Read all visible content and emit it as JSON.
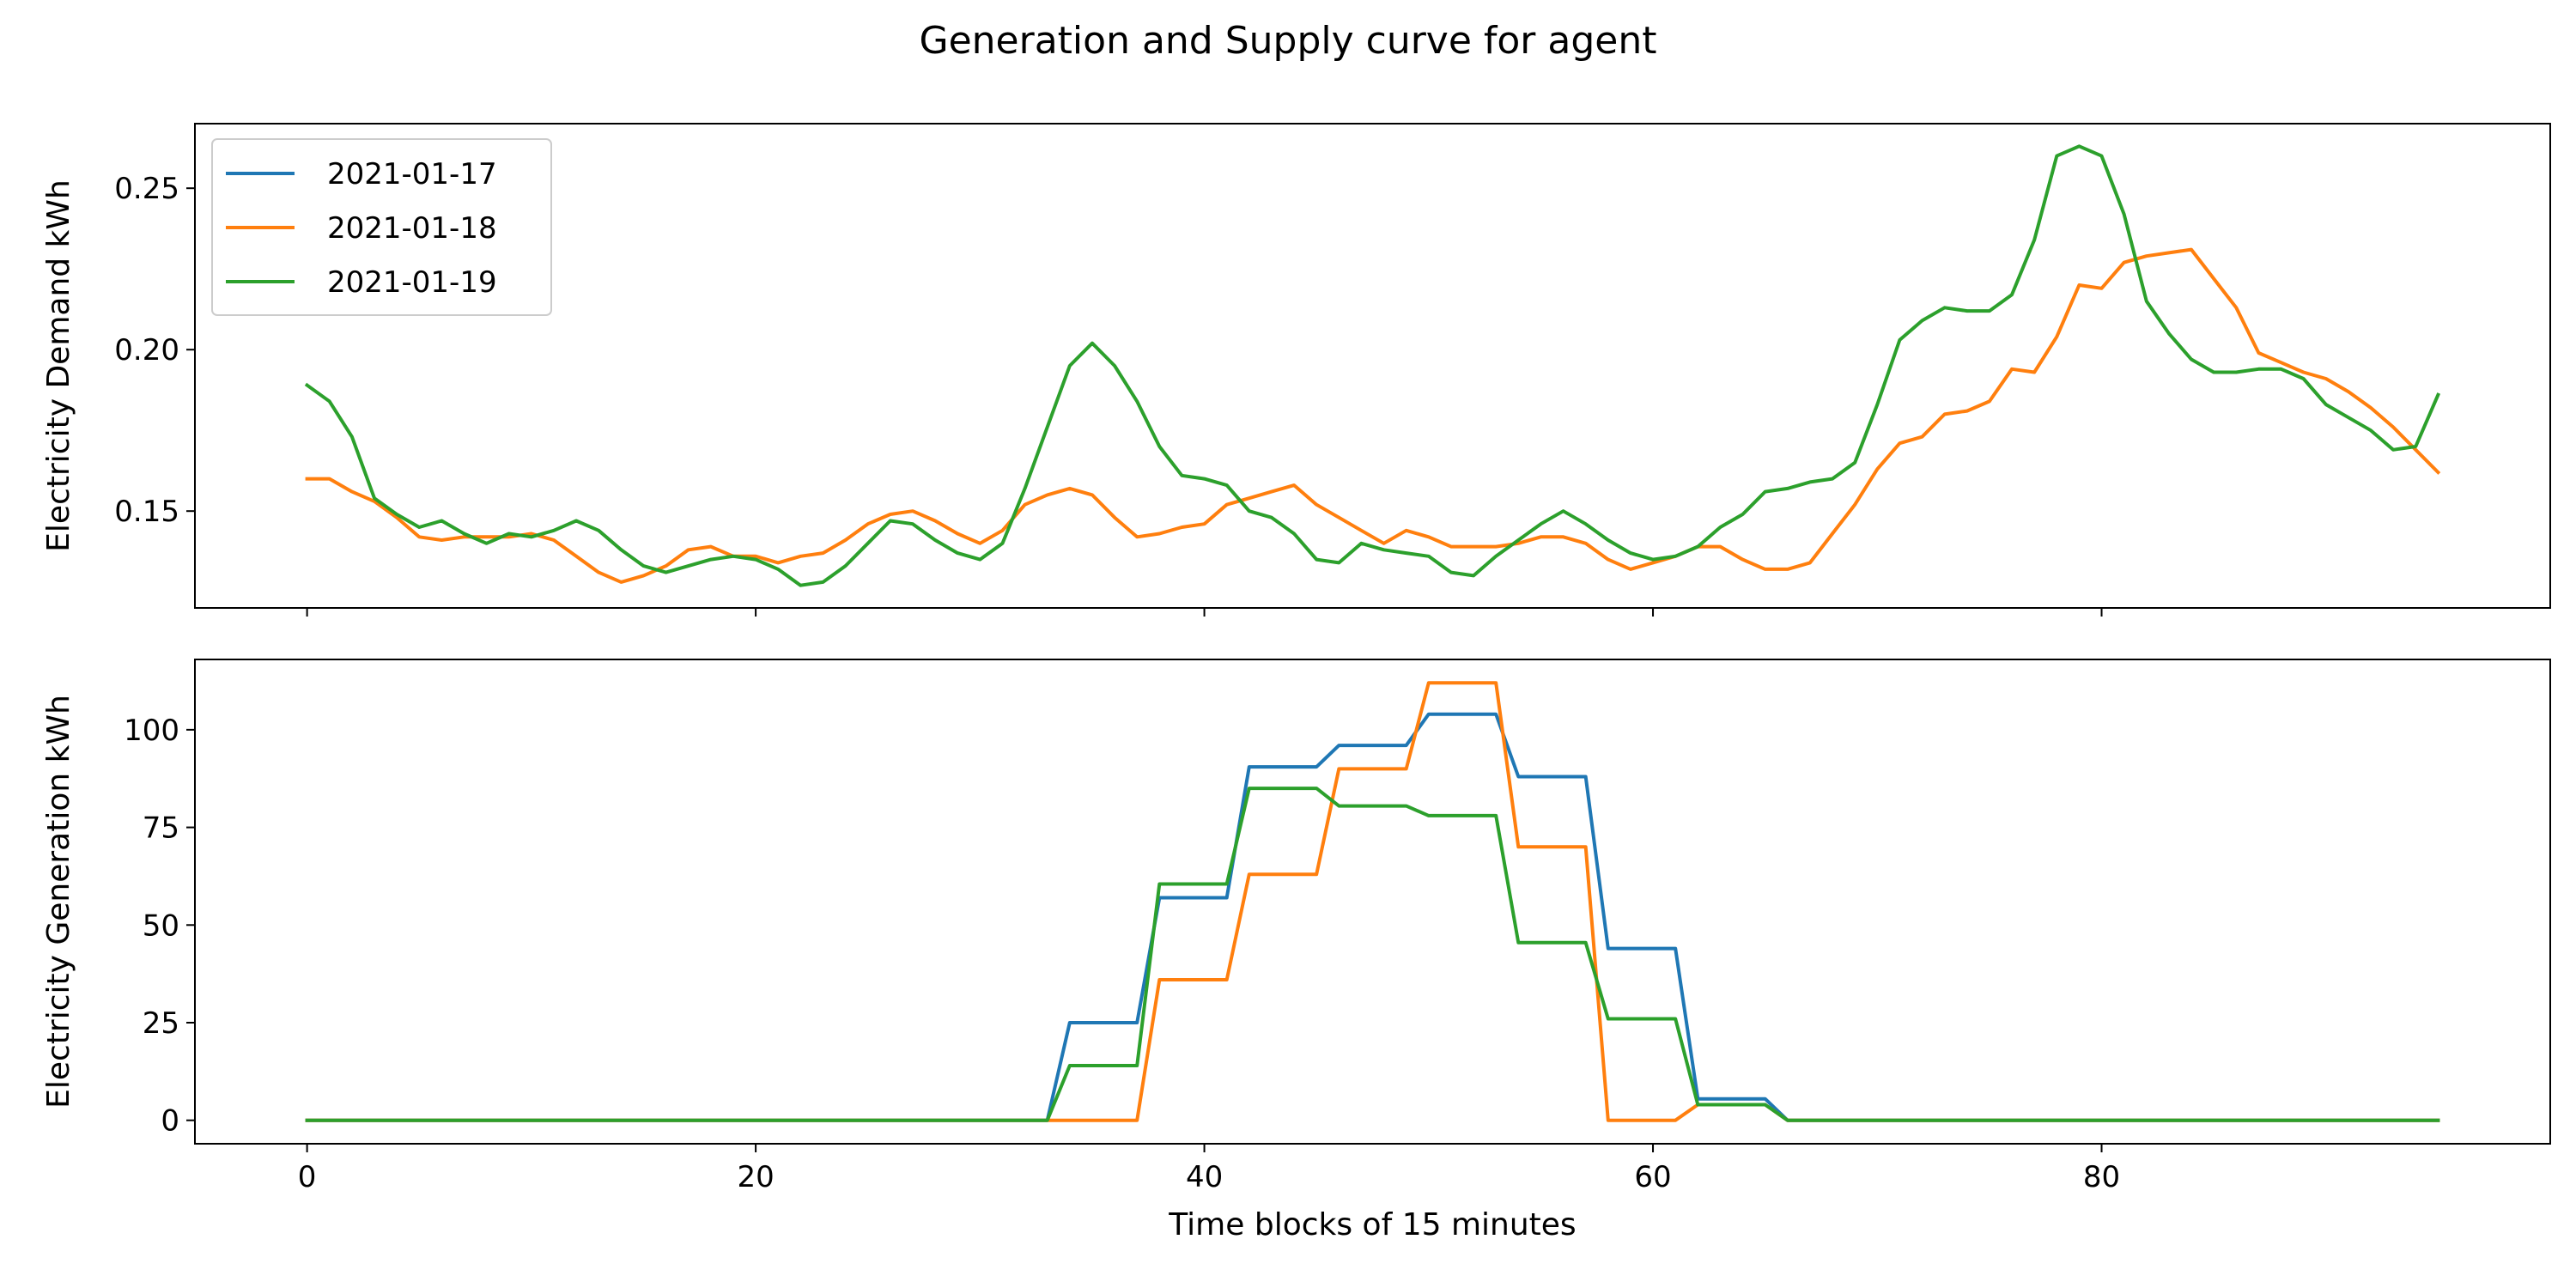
{
  "figure": {
    "title": "Generation and Supply curve for agent",
    "xlabel": "Time blocks of 15 minutes"
  },
  "chart_data": [
    {
      "type": "line",
      "ylabel": "Electricity Demand kWh",
      "xlim": [
        -5,
        100
      ],
      "ylim": [
        0.12,
        0.27
      ],
      "xticks": [
        0,
        20,
        40,
        60,
        80
      ],
      "yticks": [
        0.15,
        0.2,
        0.25
      ],
      "ytick_labels": [
        "0.15",
        "0.20",
        "0.25"
      ],
      "show_xtick_labels": false,
      "grid": false,
      "legend": "upper-left",
      "series": [
        {
          "name": "2021-01-17",
          "color": "#1f77b4",
          "values": []
        },
        {
          "name": "2021-01-18",
          "color": "#ff7f0e",
          "values": [
            0.16,
            0.16,
            0.156,
            0.153,
            0.148,
            0.142,
            0.141,
            0.142,
            0.142,
            0.142,
            0.143,
            0.141,
            0.136,
            0.131,
            0.128,
            0.13,
            0.133,
            0.138,
            0.139,
            0.136,
            0.136,
            0.134,
            0.136,
            0.137,
            0.141,
            0.146,
            0.149,
            0.15,
            0.147,
            0.143,
            0.14,
            0.144,
            0.152,
            0.155,
            0.157,
            0.155,
            0.148,
            0.142,
            0.143,
            0.145,
            0.146,
            0.152,
            0.154,
            0.156,
            0.158,
            0.152,
            0.148,
            0.144,
            0.14,
            0.144,
            0.142,
            0.139,
            0.139,
            0.139,
            0.14,
            0.142,
            0.142,
            0.14,
            0.135,
            0.132,
            0.134,
            0.136,
            0.139,
            0.139,
            0.135,
            0.132,
            0.132,
            0.134,
            0.143,
            0.152,
            0.163,
            0.171,
            0.173,
            0.18,
            0.181,
            0.184,
            0.194,
            0.193,
            0.204,
            0.22,
            0.219,
            0.227,
            0.229,
            0.23,
            0.231,
            0.222,
            0.213,
            0.199,
            0.196,
            0.193,
            0.191,
            0.187,
            0.182,
            0.176,
            0.169,
            0.162
          ]
        },
        {
          "name": "2021-01-19",
          "color": "#2ca02c",
          "values": [
            0.189,
            0.184,
            0.173,
            0.154,
            0.149,
            0.145,
            0.147,
            0.143,
            0.14,
            0.143,
            0.142,
            0.144,
            0.147,
            0.144,
            0.138,
            0.133,
            0.131,
            0.133,
            0.135,
            0.136,
            0.135,
            0.132,
            0.127,
            0.128,
            0.133,
            0.14,
            0.147,
            0.146,
            0.141,
            0.137,
            0.135,
            0.14,
            0.157,
            0.176,
            0.195,
            0.202,
            0.195,
            0.184,
            0.17,
            0.161,
            0.16,
            0.158,
            0.15,
            0.148,
            0.143,
            0.135,
            0.134,
            0.14,
            0.138,
            0.137,
            0.136,
            0.131,
            0.13,
            0.136,
            0.141,
            0.146,
            0.15,
            0.146,
            0.141,
            0.137,
            0.135,
            0.136,
            0.139,
            0.145,
            0.149,
            0.156,
            0.157,
            0.159,
            0.16,
            0.165,
            0.183,
            0.203,
            0.209,
            0.213,
            0.212,
            0.212,
            0.217,
            0.234,
            0.26,
            0.263,
            0.26,
            0.242,
            0.215,
            0.205,
            0.197,
            0.193,
            0.193,
            0.194,
            0.194,
            0.191,
            0.183,
            0.179,
            0.175,
            0.169,
            0.17,
            0.186
          ]
        }
      ]
    },
    {
      "type": "line",
      "ylabel": "Electricity Generation kWh",
      "xlabel": "Time blocks of 15 minutes",
      "xlim": [
        -5,
        100
      ],
      "ylim": [
        -6,
        118
      ],
      "xticks": [
        0,
        20,
        40,
        60,
        80
      ],
      "xtick_labels": [
        "0",
        "20",
        "40",
        "60",
        "80"
      ],
      "yticks": [
        0,
        25,
        50,
        75,
        100
      ],
      "ytick_labels": [
        "0",
        "25",
        "50",
        "75",
        "100"
      ],
      "grid": false,
      "series": [
        {
          "name": "2021-01-17",
          "color": "#1f77b4",
          "values": [
            0,
            0,
            0,
            0,
            0,
            0,
            0,
            0,
            0,
            0,
            0,
            0,
            0,
            0,
            0,
            0,
            0,
            0,
            0,
            0,
            0,
            0,
            0,
            0,
            0,
            0,
            0,
            0,
            0,
            0,
            0,
            0,
            0,
            0,
            25,
            25,
            25,
            25,
            57,
            57,
            57,
            57,
            90.5,
            90.5,
            90.5,
            90.5,
            96,
            96,
            96,
            96,
            104,
            104,
            104,
            104,
            88,
            88,
            88,
            88,
            44,
            44,
            44,
            44,
            5.5,
            5.5,
            5.5,
            5.5,
            0,
            0,
            0,
            0,
            0,
            0,
            0,
            0,
            0,
            0,
            0,
            0,
            0,
            0,
            0,
            0,
            0,
            0,
            0,
            0,
            0,
            0,
            0,
            0,
            0,
            0,
            0,
            0,
            0,
            0
          ]
        },
        {
          "name": "2021-01-18",
          "color": "#ff7f0e",
          "values": [
            0,
            0,
            0,
            0,
            0,
            0,
            0,
            0,
            0,
            0,
            0,
            0,
            0,
            0,
            0,
            0,
            0,
            0,
            0,
            0,
            0,
            0,
            0,
            0,
            0,
            0,
            0,
            0,
            0,
            0,
            0,
            0,
            0,
            0,
            0,
            0,
            0,
            0,
            36,
            36,
            36,
            36,
            63,
            63,
            63,
            63,
            90,
            90,
            90,
            90,
            112,
            112,
            112,
            112,
            70,
            70,
            70,
            70,
            0,
            0,
            0,
            0,
            4,
            4,
            4,
            4,
            0,
            0,
            0,
            0,
            0,
            0,
            0,
            0,
            0,
            0,
            0,
            0,
            0,
            0,
            0,
            0,
            0,
            0,
            0,
            0,
            0,
            0,
            0,
            0,
            0,
            0,
            0,
            0,
            0,
            0
          ]
        },
        {
          "name": "2021-01-19",
          "color": "#2ca02c",
          "values": [
            0,
            0,
            0,
            0,
            0,
            0,
            0,
            0,
            0,
            0,
            0,
            0,
            0,
            0,
            0,
            0,
            0,
            0,
            0,
            0,
            0,
            0,
            0,
            0,
            0,
            0,
            0,
            0,
            0,
            0,
            0,
            0,
            0,
            0,
            14,
            14,
            14,
            14,
            60.5,
            60.5,
            60.5,
            60.5,
            85,
            85,
            85,
            85,
            80.5,
            80.5,
            80.5,
            80.5,
            78,
            78,
            78,
            78,
            45.5,
            45.5,
            45.5,
            45.5,
            26,
            26,
            26,
            26,
            4,
            4,
            4,
            4,
            0,
            0,
            0,
            0,
            0,
            0,
            0,
            0,
            0,
            0,
            0,
            0,
            0,
            0,
            0,
            0,
            0,
            0,
            0,
            0,
            0,
            0,
            0,
            0,
            0,
            0,
            0,
            0,
            0,
            0
          ]
        }
      ]
    }
  ]
}
